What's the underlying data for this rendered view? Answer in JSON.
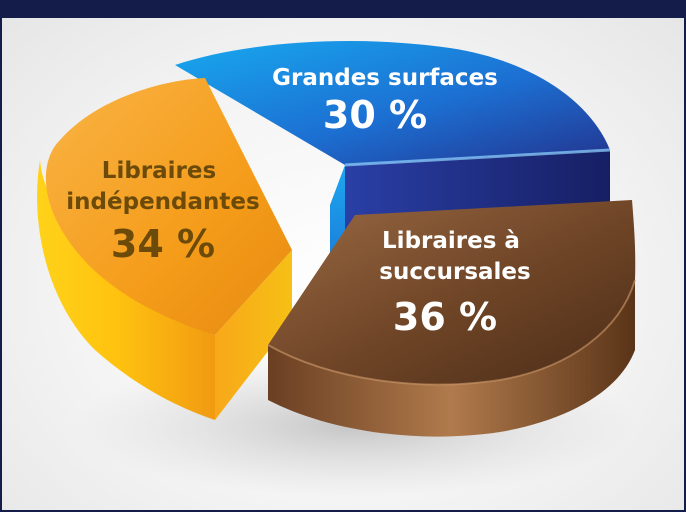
{
  "chart_data": {
    "type": "pie",
    "title": "",
    "slices": [
      {
        "label_lines": [
          "Grandes surfaces"
        ],
        "value": 30,
        "value_label": "30 %",
        "color": "#1f5fc8"
      },
      {
        "label_lines": [
          "Libraires",
          "indépendantes"
        ],
        "value": 34,
        "value_label": "34 %",
        "color": "#f4a21c"
      },
      {
        "label_lines": [
          "Libraires à",
          "succursales"
        ],
        "value": 36,
        "value_label": "36 %",
        "color": "#7a4a2a"
      }
    ],
    "colors": {
      "header_bar": "#141c4a",
      "blue_slice_label": "#ffffff",
      "orange_slice_label": "#6b4a0a",
      "brown_slice_label": "#ffffff"
    }
  }
}
